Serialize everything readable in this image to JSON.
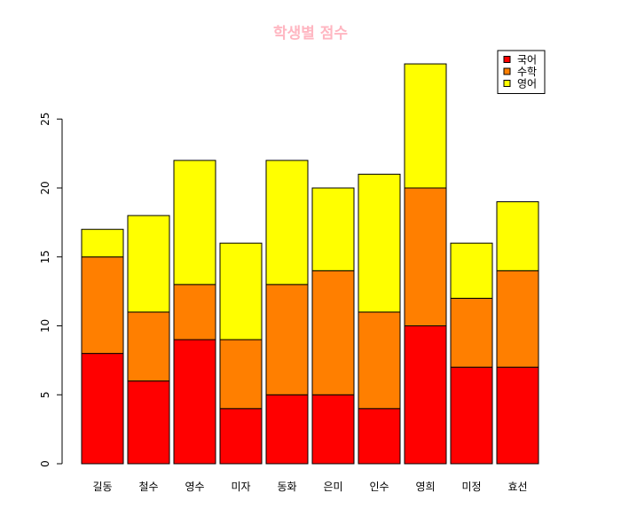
{
  "chart_data": {
    "type": "bar",
    "stacked": true,
    "title": "학생별 점수",
    "title_color": "#ffb6c1",
    "categories": [
      "길동",
      "철수",
      "영수",
      "미자",
      "동화",
      "은미",
      "인수",
      "영희",
      "미정",
      "효선"
    ],
    "series": [
      {
        "name": "국어",
        "color": "#ff0000",
        "values": [
          8,
          6,
          9,
          4,
          5,
          5,
          4,
          10,
          7,
          7
        ]
      },
      {
        "name": "수학",
        "color": "#ff7f00",
        "values": [
          7,
          5,
          4,
          5,
          8,
          9,
          7,
          10,
          5,
          7
        ]
      },
      {
        "name": "영어",
        "color": "#ffff00",
        "values": [
          2,
          7,
          9,
          7,
          9,
          6,
          10,
          9,
          4,
          5
        ]
      }
    ],
    "y_ticks": [
      0,
      5,
      10,
      15,
      20,
      25
    ],
    "ylim": [
      0,
      30.16
    ],
    "grid": false,
    "legend_position": "top-right",
    "xlabel": "",
    "ylabel": ""
  }
}
